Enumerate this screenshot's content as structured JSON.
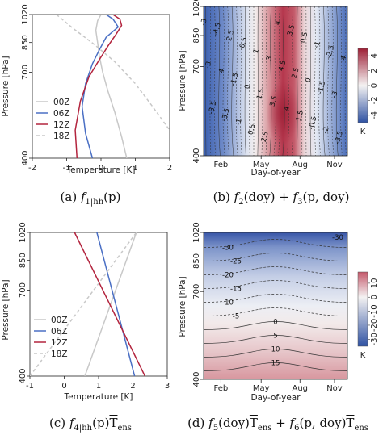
{
  "chart_data": [
    {
      "panel": "a",
      "type": "line",
      "caption": "(a) f1|hh(p)",
      "caption_parts": {
        "label": "(a)",
        "func": "f",
        "sub": "1|hh",
        "arg": "(p)"
      },
      "xlabel": "Temperature [K]",
      "ylabel": "Pressure [hPa]",
      "xlim": [
        -2,
        2
      ],
      "ylim": [
        1020,
        400
      ],
      "yaxis": "log-pressure (reversed)",
      "xticks": [
        "-2",
        "-1",
        "0",
        "1",
        "2"
      ],
      "yticks": [
        "400",
        "700",
        "850",
        "1020"
      ],
      "legend_position": "bottom-left",
      "series": [
        {
          "name": "00Z",
          "color": "#c8c8c8",
          "dash": "solid",
          "points": [
            [
              0.75,
              400
            ],
            [
              0.6,
              460
            ],
            [
              0.4,
              540
            ],
            [
              0.2,
              620
            ],
            [
              0.05,
              700
            ],
            [
              -0.05,
              780
            ],
            [
              -0.1,
              850
            ],
            [
              -0.15,
              920
            ],
            [
              -0.1,
              980
            ],
            [
              0.0,
              1020
            ]
          ]
        },
        {
          "name": "06Z",
          "color": "#4a6fc4",
          "dash": "solid",
          "points": [
            [
              -0.25,
              400
            ],
            [
              -0.45,
              470
            ],
            [
              -0.55,
              560
            ],
            [
              -0.45,
              650
            ],
            [
              -0.25,
              740
            ],
            [
              -0.05,
              810
            ],
            [
              0.15,
              880
            ],
            [
              0.5,
              940
            ],
            [
              0.35,
              990
            ],
            [
              0.15,
              1020
            ]
          ]
        },
        {
          "name": "12Z",
          "color": "#b3243e",
          "dash": "solid",
          "points": [
            [
              -0.7,
              400
            ],
            [
              -0.75,
              480
            ],
            [
              -0.6,
              580
            ],
            [
              -0.35,
              680
            ],
            [
              -0.05,
              760
            ],
            [
              0.2,
              830
            ],
            [
              0.45,
              900
            ],
            [
              0.6,
              950
            ],
            [
              0.55,
              990
            ],
            [
              0.35,
              1020
            ]
          ]
        },
        {
          "name": "18Z",
          "color": "#c8c8c8",
          "dash": "dashed",
          "points": [
            [
              -1.3,
              1020
            ],
            [
              -0.8,
              930
            ],
            [
              -0.2,
              840
            ],
            [
              0.4,
              750
            ],
            [
              1.0,
              650
            ],
            [
              1.5,
              560
            ],
            [
              2.0,
              480
            ]
          ]
        }
      ]
    },
    {
      "panel": "b",
      "type": "heatmap",
      "caption": "(b) f2(doy) + f3(p, doy)",
      "caption_parts": {
        "label": "(b)",
        "f2": "f",
        "s2": "2",
        "a2": "(doy) + ",
        "f3": "f",
        "s3": "3",
        "a3": "(p, doy)"
      },
      "xlabel": "Day-of-year",
      "ylabel": "Pressure [hPa]",
      "xticks": [
        "Feb",
        "May",
        "Aug",
        "Nov"
      ],
      "yticks": [
        "400",
        "700",
        "850",
        "1020"
      ],
      "colorbar": {
        "ticks": [
          "4",
          "2",
          "0",
          "-2",
          "-4"
        ],
        "unit": "K",
        "range": [
          -5,
          5
        ]
      },
      "contour_labels": [
        "-3",
        "-3",
        "-3.5",
        "-4.5",
        "-4",
        "-3.5",
        "-2.5",
        "-1.5",
        "-1",
        "-0.5",
        "0",
        "0.5",
        "1",
        "1.5",
        "2.5",
        "3",
        "3.5",
        "4",
        "4.5",
        "4",
        "3.5",
        "2.5",
        "1.5",
        "0.5",
        "0",
        "-0.5",
        "-1",
        "-1.5",
        "-2",
        "-2.5",
        "-3",
        "-3.5",
        "-4"
      ]
    },
    {
      "panel": "c",
      "type": "line",
      "caption": "(c) f4|hh(p)T̄ens",
      "caption_parts": {
        "label": "(c)",
        "func": "f",
        "sub": "4|hh",
        "arg": "(p)",
        "t": "T",
        "tsub": "ens"
      },
      "xlabel": "Temperature [K]",
      "ylabel": "Pressure [hPa]",
      "xlim": [
        -1,
        3
      ],
      "ylim": [
        1020,
        400
      ],
      "yaxis": "log-pressure (reversed)",
      "xticks": [
        "-1",
        "0",
        "1",
        "2",
        "3"
      ],
      "yticks": [
        "400",
        "700",
        "850",
        "1020"
      ],
      "legend_position": "bottom-left",
      "series": [
        {
          "name": "00Z",
          "color": "#c8c8c8",
          "dash": "solid",
          "points": [
            [
              0.6,
              400
            ],
            [
              2.1,
              1020
            ]
          ]
        },
        {
          "name": "06Z",
          "color": "#4a6fc4",
          "dash": "solid",
          "points": [
            [
              2.05,
              400
            ],
            [
              0.95,
              1020
            ]
          ]
        },
        {
          "name": "12Z",
          "color": "#b3243e",
          "dash": "solid",
          "points": [
            [
              2.35,
              400
            ],
            [
              0.3,
              1020
            ]
          ]
        },
        {
          "name": "18Z",
          "color": "#c8c8c8",
          "dash": "dashed",
          "points": [
            [
              -1.0,
              400
            ],
            [
              2.1,
              1020
            ]
          ]
        }
      ]
    },
    {
      "panel": "d",
      "type": "heatmap",
      "caption": "(d) f5(doy)T̄ens + f6(p, doy)T̄ens",
      "caption_parts": {
        "label": "(d)",
        "f5": "f",
        "s5": "5",
        "a5": "(doy)",
        "t1": "T",
        "tsub1": "ens",
        "plus": " + ",
        "f6": "f",
        "s6": "6",
        "a6": "(p, doy)",
        "t2": "T",
        "tsub2": "ens"
      },
      "xlabel": "Day-of-year",
      "ylabel": "Pressure [hPa]",
      "xticks": [
        "Feb",
        "May",
        "Aug",
        "Nov"
      ],
      "yticks": [
        "400",
        "700",
        "850",
        "1020"
      ],
      "colorbar": {
        "ticks": [
          "10",
          "0",
          "-10",
          "-20",
          "-30"
        ],
        "unit": "K",
        "range": [
          -35,
          18
        ]
      },
      "contour_labels": [
        "-30",
        "-30",
        "-25",
        "-20",
        "-15",
        "-10",
        "-5",
        "0",
        "5",
        "10",
        "15"
      ]
    }
  ]
}
